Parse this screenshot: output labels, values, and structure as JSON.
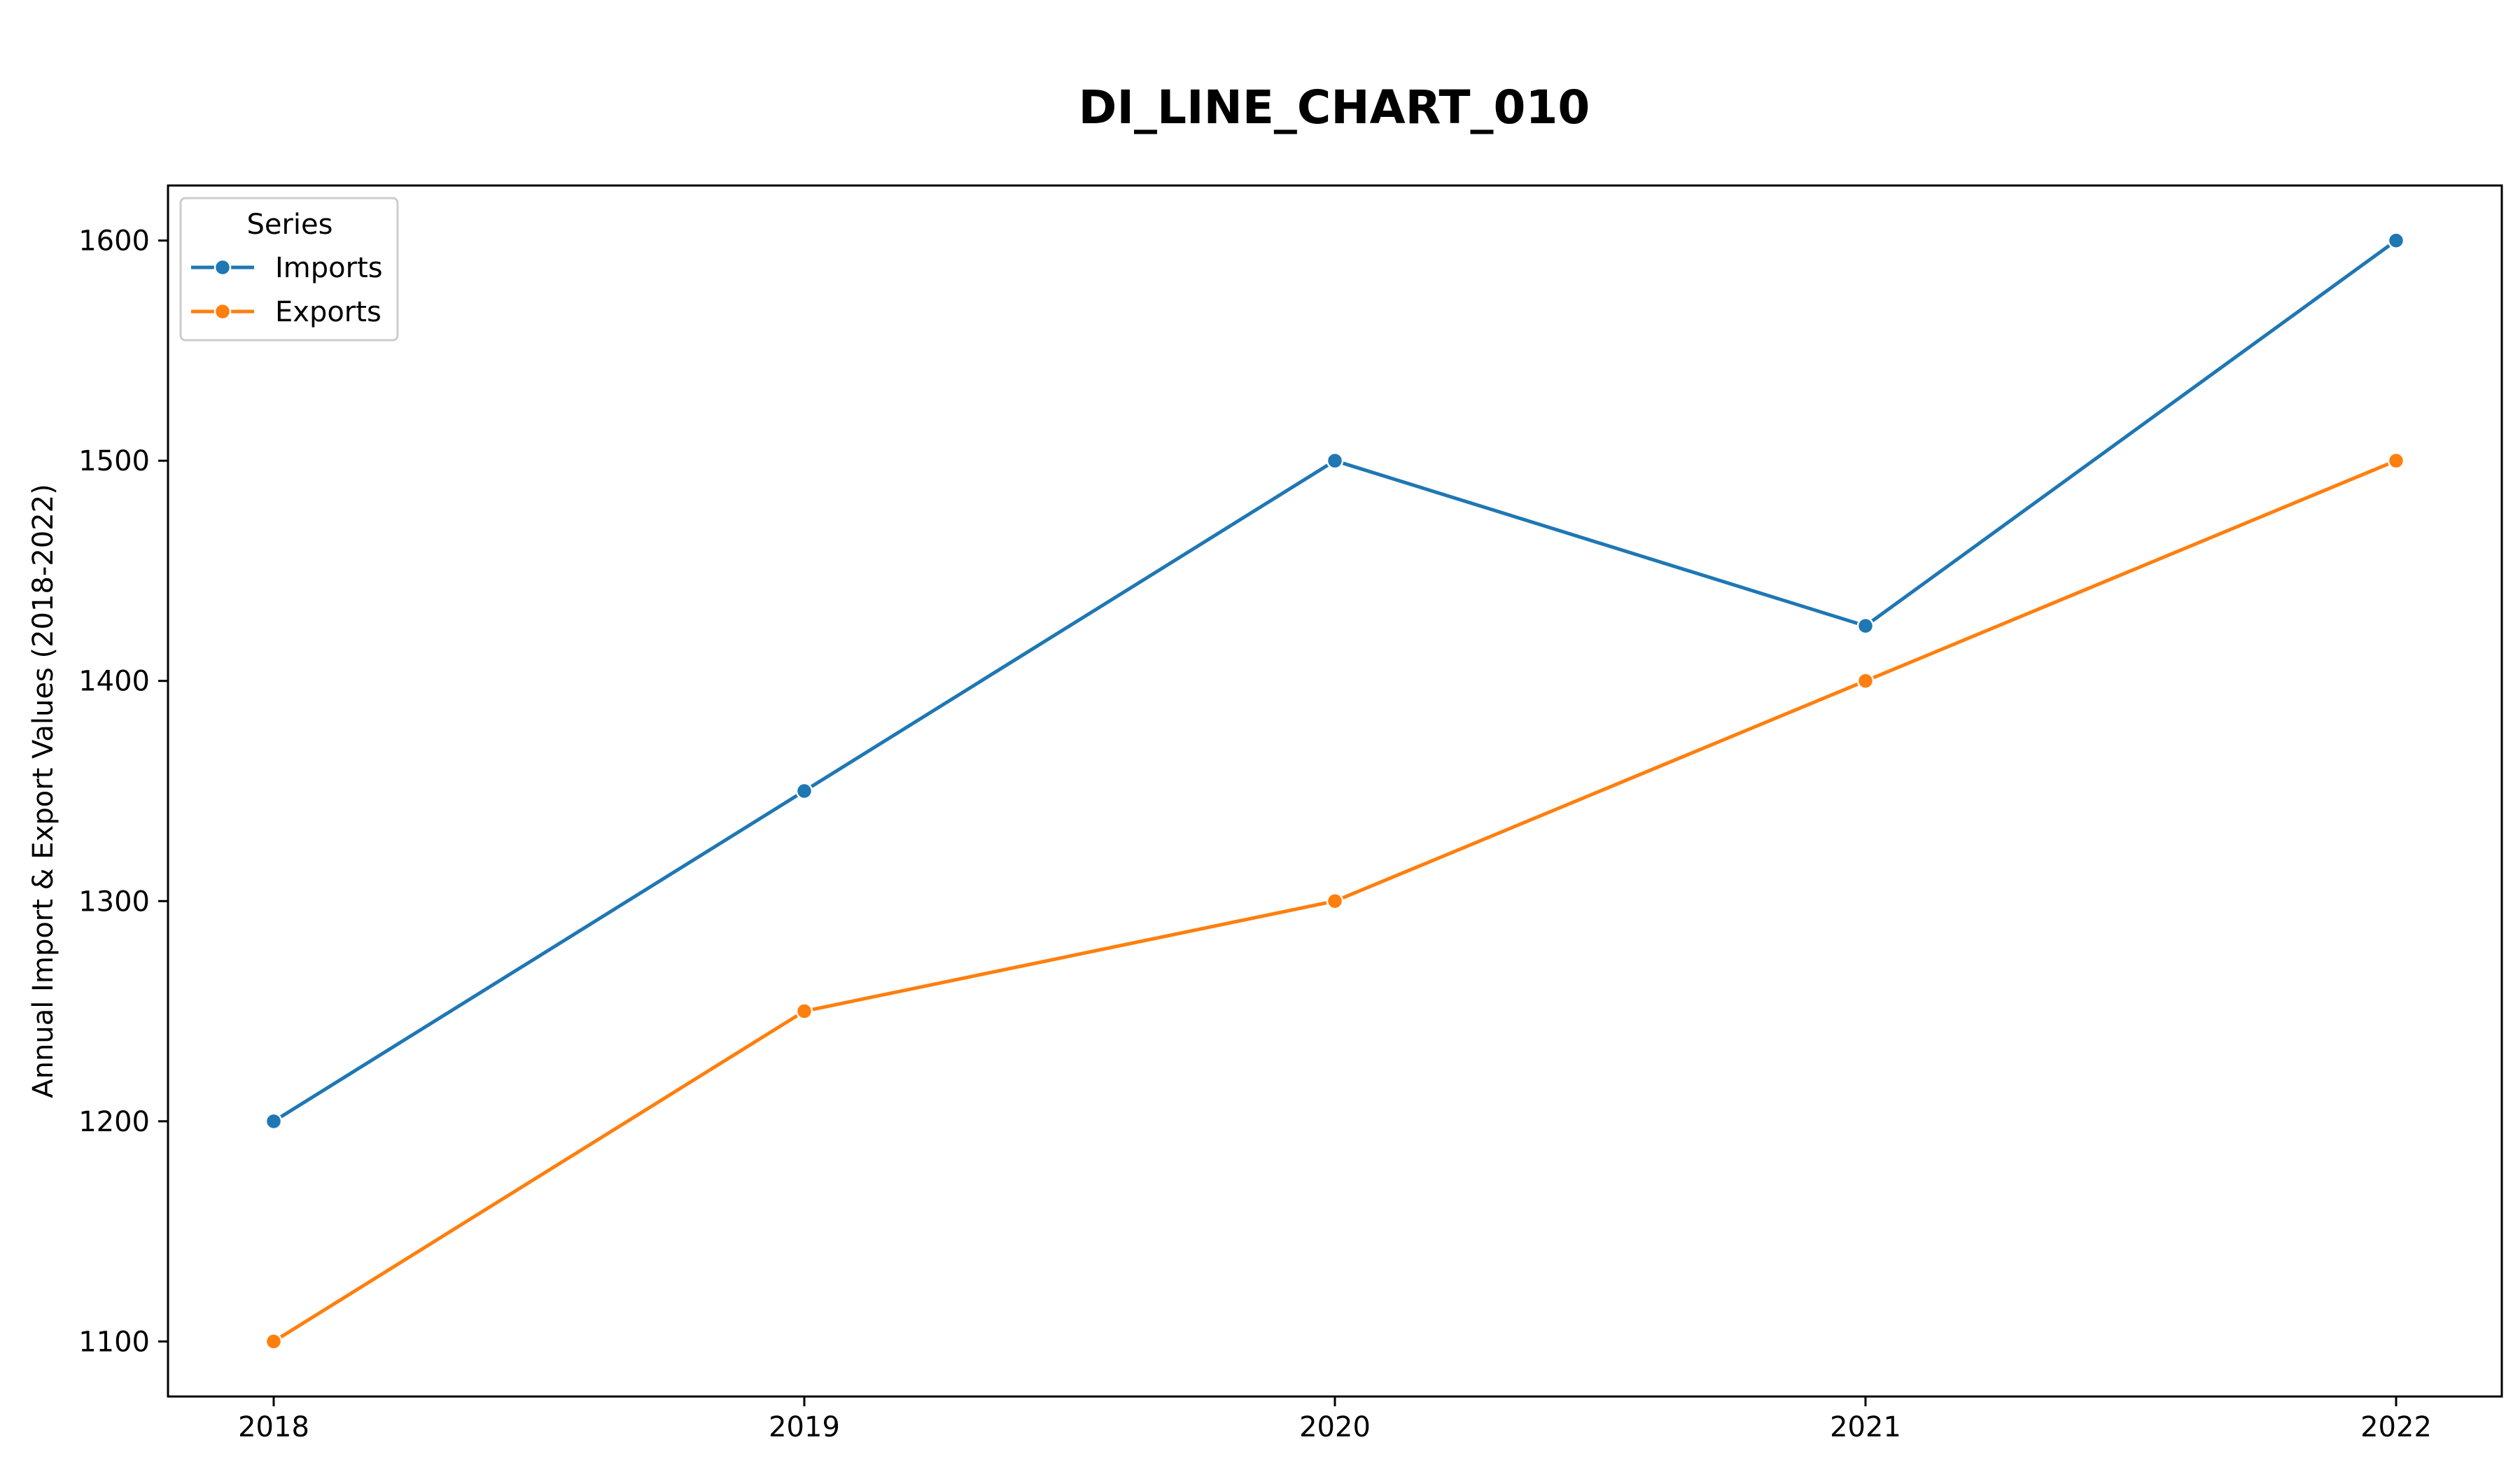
{
  "chart_data": {
    "type": "line",
    "title": "DI_LINE_CHART_010",
    "xlabel": "",
    "ylabel": "Annual Import & Export Values (2018-2022)",
    "x": [
      "2018",
      "2019",
      "2020",
      "2021",
      "2022"
    ],
    "ylim": [
      1075,
      1625
    ],
    "yticks": [
      1100,
      1200,
      1300,
      1400,
      1500,
      1600
    ],
    "grid": false,
    "legend": {
      "title": "Series",
      "placement": "top-left"
    },
    "series": [
      {
        "name": "Imports",
        "color": "#1f77b4",
        "marker": "circle",
        "values": [
          1200,
          1350,
          1500,
          1425,
          1600
        ]
      },
      {
        "name": "Exports",
        "color": "#ff7f0e",
        "marker": "circle",
        "values": [
          1100,
          1250,
          1300,
          1400,
          1500
        ]
      }
    ]
  }
}
